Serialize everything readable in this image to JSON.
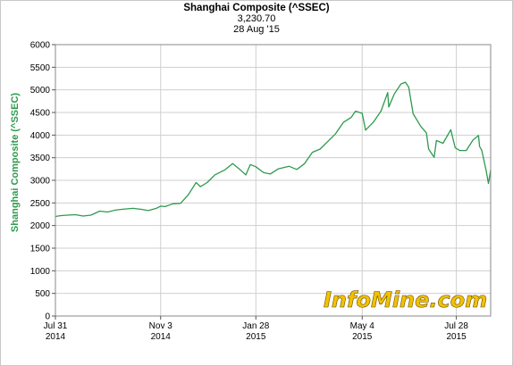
{
  "header": {
    "title": "Shanghai Composite (^SSEC)",
    "last_value": "3,230.70",
    "date": "28 Aug '15"
  },
  "watermark": "InfoMine.com",
  "colors": {
    "line": "#2e9a4e",
    "axis_label": "#2e9a4e",
    "grid": "#cfcfcf",
    "watermark_fill": "#f2c200"
  },
  "chart_data": {
    "type": "line",
    "title": "Shanghai Composite (^SSEC)",
    "ylabel": "Shanghai Composite (^SSEC)",
    "xlabel": "",
    "ylim": [
      0,
      6000
    ],
    "yticks": [
      0,
      500,
      1000,
      1500,
      2000,
      2500,
      3000,
      3500,
      4000,
      4500,
      5000,
      5500,
      6000
    ],
    "xlim": [
      "2014-07-31",
      "2015-08-28"
    ],
    "xticks": [
      {
        "date": "2014-07-31",
        "label1": "Jul 31",
        "label2": "2014"
      },
      {
        "date": "2014-11-03",
        "label1": "Nov 3",
        "label2": "2014"
      },
      {
        "date": "2015-01-28",
        "label1": "Jan 28",
        "label2": "2015"
      },
      {
        "date": "2015-05-04",
        "label1": "May 4",
        "label2": "2015"
      },
      {
        "date": "2015-07-28",
        "label1": "Jul 28",
        "label2": "2015"
      }
    ],
    "grid": true,
    "series": [
      {
        "color": "#2e9a4e",
        "points": [
          [
            "2014-07-31",
            2200
          ],
          [
            "2014-08-05",
            2220
          ],
          [
            "2014-08-11",
            2230
          ],
          [
            "2014-08-18",
            2240
          ],
          [
            "2014-08-25",
            2210
          ],
          [
            "2014-09-01",
            2230
          ],
          [
            "2014-09-09",
            2320
          ],
          [
            "2014-09-16",
            2300
          ],
          [
            "2014-09-23",
            2340
          ],
          [
            "2014-09-30",
            2360
          ],
          [
            "2014-10-09",
            2380
          ],
          [
            "2014-10-16",
            2360
          ],
          [
            "2014-10-23",
            2330
          ],
          [
            "2014-10-30",
            2380
          ],
          [
            "2014-11-03",
            2430
          ],
          [
            "2014-11-07",
            2420
          ],
          [
            "2014-11-14",
            2480
          ],
          [
            "2014-11-21",
            2490
          ],
          [
            "2014-11-28",
            2680
          ],
          [
            "2014-12-05",
            2950
          ],
          [
            "2014-12-09",
            2860
          ],
          [
            "2014-12-15",
            2950
          ],
          [
            "2014-12-22",
            3120
          ],
          [
            "2014-12-31",
            3230
          ],
          [
            "2015-01-07",
            3370
          ],
          [
            "2015-01-14",
            3230
          ],
          [
            "2015-01-19",
            3120
          ],
          [
            "2015-01-23",
            3350
          ],
          [
            "2015-01-28",
            3300
          ],
          [
            "2015-02-04",
            3170
          ],
          [
            "2015-02-10",
            3140
          ],
          [
            "2015-02-17",
            3250
          ],
          [
            "2015-02-27",
            3310
          ],
          [
            "2015-03-06",
            3240
          ],
          [
            "2015-03-13",
            3370
          ],
          [
            "2015-03-20",
            3620
          ],
          [
            "2015-03-27",
            3690
          ],
          [
            "2015-04-03",
            3860
          ],
          [
            "2015-04-10",
            4030
          ],
          [
            "2015-04-17",
            4280
          ],
          [
            "2015-04-24",
            4390
          ],
          [
            "2015-04-28",
            4530
          ],
          [
            "2015-05-04",
            4480
          ],
          [
            "2015-05-07",
            4110
          ],
          [
            "2015-05-14",
            4280
          ],
          [
            "2015-05-21",
            4530
          ],
          [
            "2015-05-27",
            4940
          ],
          [
            "2015-05-28",
            4620
          ],
          [
            "2015-06-02",
            4910
          ],
          [
            "2015-06-08",
            5130
          ],
          [
            "2015-06-12",
            5170
          ],
          [
            "2015-06-15",
            5060
          ],
          [
            "2015-06-19",
            4470
          ],
          [
            "2015-06-26",
            4190
          ],
          [
            "2015-07-01",
            4050
          ],
          [
            "2015-07-03",
            3690
          ],
          [
            "2015-07-08",
            3510
          ],
          [
            "2015-07-10",
            3880
          ],
          [
            "2015-07-16",
            3820
          ],
          [
            "2015-07-23",
            4120
          ],
          [
            "2015-07-27",
            3720
          ],
          [
            "2015-07-31",
            3660
          ],
          [
            "2015-08-06",
            3660
          ],
          [
            "2015-08-12",
            3890
          ],
          [
            "2015-08-17",
            3990
          ],
          [
            "2015-08-18",
            3750
          ],
          [
            "2015-08-20",
            3660
          ],
          [
            "2015-08-24",
            3210
          ],
          [
            "2015-08-26",
            2930
          ],
          [
            "2015-08-27",
            3080
          ],
          [
            "2015-08-28",
            3230
          ]
        ]
      }
    ]
  }
}
